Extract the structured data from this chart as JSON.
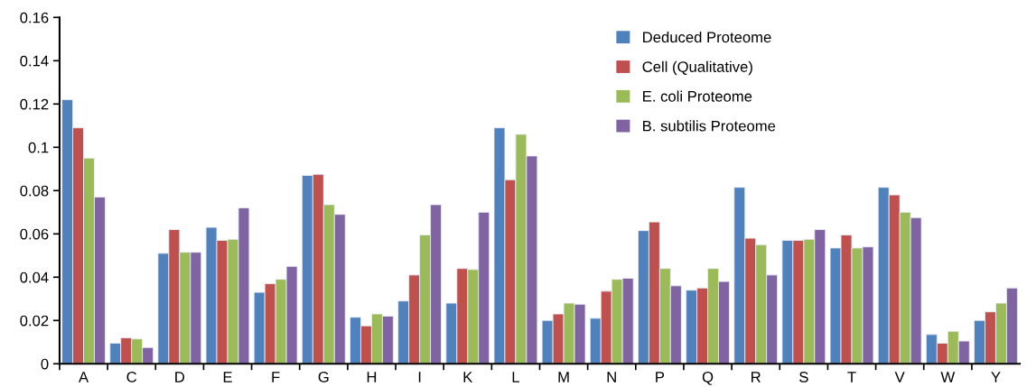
{
  "chart_data": {
    "type": "bar",
    "categories": [
      "A",
      "C",
      "D",
      "E",
      "F",
      "G",
      "H",
      "I",
      "K",
      "L",
      "M",
      "N",
      "P",
      "Q",
      "R",
      "S",
      "T",
      "V",
      "W",
      "Y"
    ],
    "series": [
      {
        "name": "Deduced Proteome",
        "color": "#4f81bd",
        "values": [
          0.122,
          0.0095,
          0.051,
          0.063,
          0.033,
          0.087,
          0.0215,
          0.029,
          0.028,
          0.109,
          0.02,
          0.021,
          0.0615,
          0.034,
          0.0815,
          0.057,
          0.0535,
          0.0815,
          0.0135,
          0.02
        ]
      },
      {
        "name": "Cell (Qualitative)",
        "color": "#c0504d",
        "values": [
          0.109,
          0.012,
          0.062,
          0.057,
          0.037,
          0.0875,
          0.0175,
          0.041,
          0.044,
          0.085,
          0.023,
          0.0335,
          0.0655,
          0.035,
          0.058,
          0.057,
          0.0595,
          0.078,
          0.0095,
          0.024
        ]
      },
      {
        "name": "E. coli Proteome",
        "color": "#9bbb59",
        "values": [
          0.095,
          0.0115,
          0.0515,
          0.0575,
          0.039,
          0.0735,
          0.023,
          0.0595,
          0.0435,
          0.106,
          0.028,
          0.039,
          0.044,
          0.044,
          0.055,
          0.0575,
          0.0535,
          0.07,
          0.015,
          0.028
        ]
      },
      {
        "name": "B. subtilis Proteome",
        "color": "#8064a2",
        "values": [
          0.077,
          0.0075,
          0.0515,
          0.072,
          0.045,
          0.069,
          0.022,
          0.0735,
          0.07,
          0.096,
          0.0275,
          0.0395,
          0.036,
          0.038,
          0.041,
          0.062,
          0.054,
          0.0675,
          0.0105,
          0.035
        ]
      }
    ],
    "ylim": [
      0,
      0.16
    ],
    "yticks": [
      {
        "value": 0,
        "label": "0"
      },
      {
        "value": 0.02,
        "label": "0.02"
      },
      {
        "value": 0.04,
        "label": "0.04"
      },
      {
        "value": 0.06,
        "label": "0.06"
      },
      {
        "value": 0.08,
        "label": "0.08"
      },
      {
        "value": 0.1,
        "label": "0.1"
      },
      {
        "value": 0.12,
        "label": "0.12"
      },
      {
        "value": 0.14,
        "label": "0.14"
      },
      {
        "value": 0.16,
        "label": "0.16"
      }
    ],
    "legend": "top right",
    "grid": false
  }
}
